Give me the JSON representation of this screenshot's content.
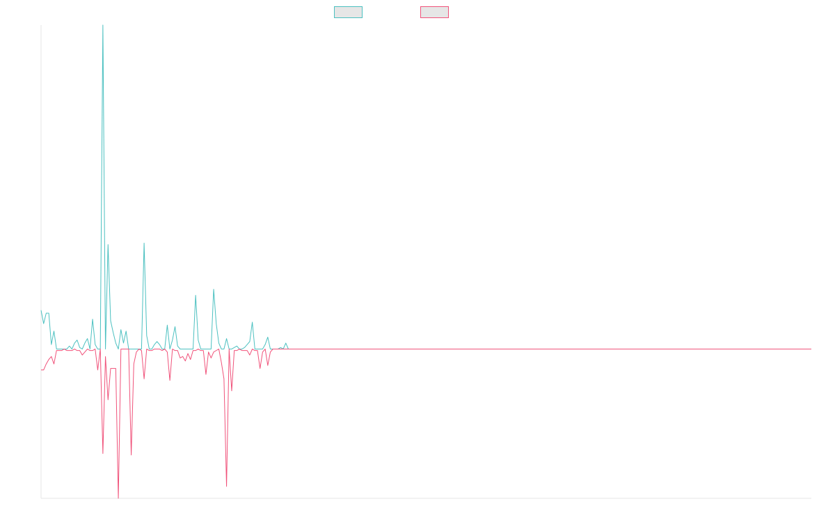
{
  "chart_data": {
    "type": "line",
    "title": "",
    "xlabel": "",
    "ylabel": "",
    "legend_position": "top-center",
    "grid": false,
    "x_count": 300,
    "ylim": [
      -1.0,
      2.17
    ],
    "series": [
      {
        "color": "#4bc0c0",
        "fill": "#e6e6e6",
        "values": [
          0.26,
          0.17,
          0.24,
          0.24,
          0.03,
          0.12,
          0.0,
          0.0,
          0.0,
          0.0,
          0.0,
          0.02,
          0.0,
          0.04,
          0.06,
          0.01,
          0.0,
          0.04,
          0.07,
          0.0,
          0.2,
          0.03,
          0.0,
          0.0,
          2.17,
          0.0,
          0.7,
          0.19,
          0.11,
          0.04,
          0.0,
          0.13,
          0.04,
          0.12,
          0.0,
          0.0,
          0.0,
          0.0,
          0.0,
          0.0,
          0.71,
          0.09,
          0.0,
          0.0,
          0.03,
          0.05,
          0.03,
          0.0,
          0.0,
          0.16,
          0.0,
          0.06,
          0.15,
          0.02,
          0.0,
          0.0,
          0.0,
          0.0,
          0.0,
          0.0,
          0.36,
          0.06,
          0.0,
          0.0,
          0.0,
          0.0,
          0.0,
          0.4,
          0.17,
          0.04,
          0.0,
          0.0,
          0.07,
          0.0,
          0.0,
          0.01,
          0.02,
          0.0,
          0.0,
          0.01,
          0.03,
          0.05,
          0.18,
          0.0,
          0.0,
          0.0,
          0.0,
          0.03,
          0.08,
          0.0,
          0.0,
          0.0,
          0.0,
          0.01,
          0.0,
          0.04,
          0.0,
          0.0,
          0.0,
          0.0,
          0.0,
          0.0,
          0.0,
          0.0,
          0.0,
          0.0,
          0.0,
          0.0,
          0.0,
          0.0,
          0.0,
          0.0,
          0.0,
          0.0,
          0.0,
          0.0,
          0.0,
          0.0,
          0.0,
          0.0,
          0.0,
          0.0,
          0.0,
          0.0,
          0.0,
          0.0,
          0.0,
          0.0,
          0.0,
          0.0,
          0.0,
          0.0,
          0.0,
          0.0,
          0.0,
          0.0,
          0.0,
          0.0,
          0.0,
          0.0,
          0.0,
          0.0,
          0.0,
          0.0,
          0.0,
          0.0,
          0.0,
          0.0,
          0.0,
          0.0,
          0.0,
          0.0,
          0.0,
          0.0,
          0.0,
          0.0,
          0.0,
          0.0,
          0.0,
          0.0,
          0.0,
          0.0,
          0.0,
          0.0,
          0.0,
          0.0,
          0.0,
          0.0,
          0.0,
          0.0,
          0.0,
          0.0,
          0.0,
          0.0,
          0.0,
          0.0,
          0.0,
          0.0,
          0.0,
          0.0,
          0.0,
          0.0,
          0.0,
          0.0,
          0.0,
          0.0,
          0.0,
          0.0,
          0.0,
          0.0,
          0.0,
          0.0,
          0.0,
          0.0,
          0.0,
          0.0,
          0.0,
          0.0,
          0.0,
          0.0,
          0.0,
          0.0,
          0.0,
          0.0,
          0.0,
          0.0,
          0.0,
          0.0,
          0.0,
          0.0,
          0.0,
          0.0,
          0.0,
          0.0,
          0.0,
          0.0,
          0.0,
          0.0,
          0.0,
          0.0,
          0.0,
          0.0,
          0.0,
          0.0,
          0.0,
          0.0,
          0.0,
          0.0,
          0.0,
          0.0,
          0.0,
          0.0,
          0.0,
          0.0,
          0.0,
          0.0,
          0.0,
          0.0,
          0.0,
          0.0,
          0.0,
          0.0,
          0.0,
          0.0,
          0.0,
          0.0,
          0.0,
          0.0,
          0.0,
          0.0,
          0.0,
          0.0,
          0.0,
          0.0,
          0.0,
          0.0,
          0.0,
          0.0,
          0.0,
          0.0,
          0.0,
          0.0,
          0.0,
          0.0,
          0.0,
          0.0,
          0.0,
          0.0,
          0.0,
          0.0,
          0.0,
          0.0,
          0.0,
          0.0,
          0.0,
          0.0,
          0.0,
          0.0,
          0.0,
          0.0,
          0.0,
          0.0,
          0.0,
          0.0,
          0.0,
          0.0,
          0.0,
          0.0,
          0.0,
          0.0,
          0.0,
          0.0,
          0.0,
          0.0,
          0.0,
          0.0,
          0.0,
          0.0
        ]
      },
      {
        "color": "#f0527a",
        "fill": "#e6e6e6",
        "values": [
          -0.14,
          -0.14,
          -0.1,
          -0.07,
          -0.05,
          -0.1,
          -0.01,
          -0.01,
          -0.01,
          0.0,
          -0.01,
          -0.01,
          -0.01,
          0.0,
          -0.01,
          -0.01,
          -0.04,
          -0.02,
          0.0,
          -0.01,
          -0.01,
          0.0,
          -0.14,
          0.0,
          -0.7,
          -0.05,
          -0.34,
          -0.13,
          -0.13,
          -0.13,
          -1.0,
          0.0,
          0.0,
          0.0,
          0.0,
          -0.71,
          -0.1,
          -0.02,
          0.0,
          -0.01,
          -0.2,
          0.0,
          -0.01,
          -0.01,
          0.0,
          0.0,
          0.0,
          -0.01,
          0.0,
          -0.02,
          -0.21,
          0.0,
          -0.01,
          -0.01,
          -0.06,
          -0.05,
          -0.08,
          -0.03,
          -0.07,
          -0.01,
          -0.01,
          0.0,
          -0.01,
          -0.01,
          -0.17,
          -0.02,
          -0.06,
          -0.02,
          -0.01,
          0.0,
          -0.09,
          -0.2,
          -0.92,
          0.0,
          -0.28,
          -0.01,
          -0.01,
          0.0,
          -0.01,
          -0.01,
          -0.01,
          -0.04,
          0.0,
          -0.01,
          -0.01,
          -0.13,
          -0.02,
          0.0,
          -0.11,
          -0.02,
          0.0,
          0.0,
          0.0,
          0.0,
          0.0,
          0.0,
          0.0,
          0.0,
          0.0,
          0.0,
          0.0,
          0.0,
          0.0,
          0.0,
          0.0,
          0.0,
          0.0,
          0.0,
          0.0,
          0.0,
          0.0,
          0.0,
          0.0,
          0.0,
          0.0,
          0.0,
          0.0,
          0.0,
          0.0,
          0.0,
          0.0,
          0.0,
          0.0,
          0.0,
          0.0,
          0.0,
          0.0,
          0.0,
          0.0,
          0.0,
          0.0,
          0.0,
          0.0,
          0.0,
          0.0,
          0.0,
          0.0,
          0.0,
          0.0,
          0.0,
          0.0,
          0.0,
          0.0,
          0.0,
          0.0,
          0.0,
          0.0,
          0.0,
          0.0,
          0.0,
          0.0,
          0.0,
          0.0,
          0.0,
          0.0,
          0.0,
          0.0,
          0.0,
          0.0,
          0.0,
          0.0,
          0.0,
          0.0,
          0.0,
          0.0,
          0.0,
          0.0,
          0.0,
          0.0,
          0.0,
          0.0,
          0.0,
          0.0,
          0.0,
          0.0,
          0.0,
          0.0,
          0.0,
          0.0,
          0.0,
          0.0,
          0.0,
          0.0,
          0.0,
          0.0,
          0.0,
          0.0,
          0.0,
          0.0,
          0.0,
          0.0,
          0.0,
          0.0,
          0.0,
          0.0,
          0.0,
          0.0,
          0.0,
          0.0,
          0.0,
          0.0,
          0.0,
          0.0,
          0.0,
          0.0,
          0.0,
          0.0,
          0.0,
          0.0,
          0.0,
          0.0,
          0.0,
          0.0,
          0.0,
          0.0,
          0.0,
          0.0,
          0.0,
          0.0,
          0.0,
          0.0,
          0.0,
          0.0,
          0.0,
          0.0,
          0.0,
          0.0,
          0.0,
          0.0,
          0.0,
          0.0,
          0.0,
          0.0,
          0.0,
          0.0,
          0.0,
          0.0,
          0.0,
          0.0,
          0.0,
          0.0,
          0.0,
          0.0,
          0.0,
          0.0,
          0.0,
          0.0,
          0.0,
          0.0,
          0.0,
          0.0,
          0.0,
          0.0,
          0.0,
          0.0,
          0.0,
          0.0,
          0.0,
          0.0,
          0.0,
          0.0,
          0.0,
          0.0,
          0.0,
          0.0,
          0.0,
          0.0,
          0.0,
          0.0,
          0.0,
          0.0,
          0.0,
          0.0,
          0.0,
          0.0,
          0.0,
          0.0,
          0.0,
          0.0,
          0.0,
          0.0,
          0.0,
          0.0,
          0.0,
          0.0,
          0.0,
          0.0,
          0.0,
          0.0,
          0.0,
          0.0,
          0.0,
          0.0,
          0.0,
          0.0,
          0.0,
          0.0,
          0.0,
          0.0,
          0.0
        ]
      }
    ],
    "axis_color": "#e6e6e6"
  }
}
